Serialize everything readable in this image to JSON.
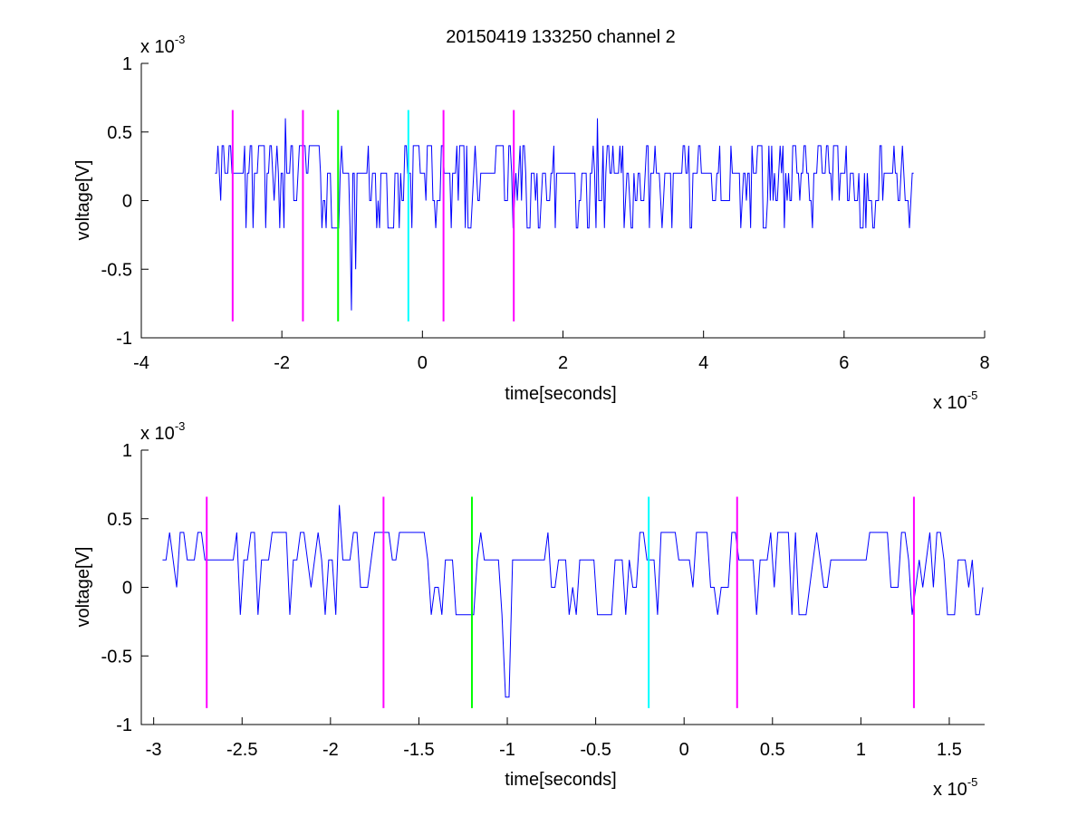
{
  "figure": {
    "title": "20150419 133250 channel 2"
  },
  "chart_data": [
    {
      "type": "line",
      "xlabel": "time[seconds]",
      "ylabel": "voltage[V]",
      "x_exponent_label": "x 10",
      "x_exponent": "-5",
      "y_exponent_label": "x 10",
      "y_exponent": "-3",
      "xlim": [
        -4,
        8
      ],
      "ylim": [
        -1,
        1
      ],
      "xticks": [
        -4,
        -2,
        0,
        2,
        4,
        6,
        8
      ],
      "xtick_labels": [
        "-4",
        "-2",
        "0",
        "2",
        "4",
        "6",
        "8"
      ],
      "yticks": [
        -1,
        -0.5,
        0,
        0.5,
        1
      ],
      "ytick_labels": [
        "-1",
        "-0.5",
        "0",
        "0.5",
        "1"
      ],
      "grid": false,
      "signal": {
        "color": "#0000ff",
        "x_start": -2.95,
        "x_end": 7.0,
        "baseline_values": [
          0.0,
          0.2,
          0.4,
          -0.2
        ],
        "spikes": [
          {
            "x": -1.95,
            "y": 0.6
          },
          {
            "x": 2.5,
            "y": 0.6
          },
          {
            "x": -1.0,
            "y": -0.8
          },
          {
            "x": -0.95,
            "y": -0.5
          }
        ]
      },
      "markers": [
        {
          "x": -2.7,
          "color": "#ff00ff"
        },
        {
          "x": -1.7,
          "color": "#ff00ff"
        },
        {
          "x": -1.2,
          "color": "#00ff00"
        },
        {
          "x": -0.2,
          "color": "#00ffff"
        },
        {
          "x": 0.3,
          "color": "#ff00ff"
        },
        {
          "x": 1.3,
          "color": "#ff00ff"
        }
      ],
      "marker_ylim": [
        -0.88,
        0.66
      ]
    },
    {
      "type": "line",
      "xlabel": "time[seconds]",
      "ylabel": "voltage[V]",
      "x_exponent_label": "x 10",
      "x_exponent": "-5",
      "y_exponent_label": "x 10",
      "y_exponent": "-3",
      "xlim": [
        -3.07,
        1.7
      ],
      "ylim": [
        -1,
        1
      ],
      "xticks": [
        -3,
        -2.5,
        -2,
        -1.5,
        -1,
        -0.5,
        0,
        0.5,
        1,
        1.5
      ],
      "xtick_labels": [
        "-3",
        "-2.5",
        "-2",
        "-1.5",
        "-1",
        "-0.5",
        "0",
        "0.5",
        "1",
        "1.5"
      ],
      "yticks": [
        -1,
        -0.5,
        0,
        0.5,
        1
      ],
      "ytick_labels": [
        "-1",
        "-0.5",
        "0",
        "0.5",
        "1"
      ],
      "grid": false,
      "signal": {
        "color": "#0000ff",
        "x_start": -2.95,
        "x_end": 1.7,
        "baseline_values": [
          0.0,
          0.2,
          0.4,
          -0.2
        ],
        "spikes": [
          {
            "x": -1.95,
            "y": 0.6
          },
          {
            "x": -1.0,
            "y": -0.8
          },
          {
            "x": -0.98,
            "y": -0.8
          }
        ]
      },
      "markers": [
        {
          "x": -2.7,
          "color": "#ff00ff"
        },
        {
          "x": -1.7,
          "color": "#ff00ff"
        },
        {
          "x": -1.2,
          "color": "#00ff00"
        },
        {
          "x": -0.2,
          "color": "#00ffff"
        },
        {
          "x": 0.3,
          "color": "#ff00ff"
        },
        {
          "x": 1.3,
          "color": "#ff00ff"
        }
      ],
      "marker_ylim": [
        -0.88,
        0.66
      ]
    }
  ]
}
